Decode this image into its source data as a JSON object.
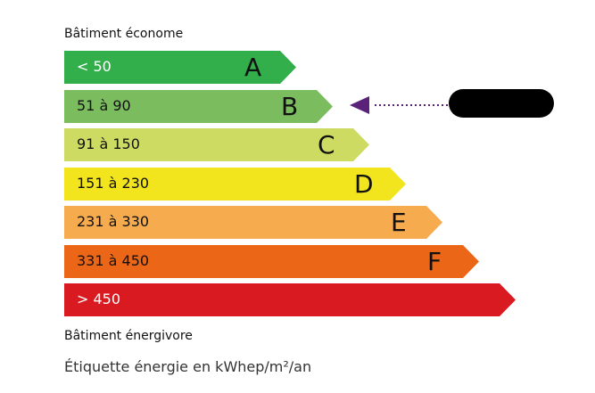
{
  "header": {
    "top_caption": "Bâtiment économe",
    "bottom_caption": "Bâtiment énergivore"
  },
  "footer": {
    "unit_label": "Étiquette énergie en kWhep/m²/an"
  },
  "classes": [
    {
      "letter": "A",
      "range": "< 50",
      "color": "#32ae4b",
      "text_color": "#ffffff"
    },
    {
      "letter": "B",
      "range": "51 à 90",
      "color": "#7bbd5e",
      "text_color": "#111111"
    },
    {
      "letter": "C",
      "range": "91 à 150",
      "color": "#cddb62",
      "text_color": "#111111"
    },
    {
      "letter": "D",
      "range": "151 à 230",
      "color": "#f2e51d",
      "text_color": "#111111"
    },
    {
      "letter": "E",
      "range": "231 à 330",
      "color": "#f6ab4f",
      "text_color": "#111111"
    },
    {
      "letter": "F",
      "range": "331 à 450",
      "color": "#eb6717",
      "text_color": "#111111"
    },
    {
      "letter": "",
      "range": "> 450",
      "color": "#d91b21",
      "text_color": "#ffffff"
    }
  ],
  "indicator": {
    "selected_class": "B",
    "color": "#5a2278"
  }
}
